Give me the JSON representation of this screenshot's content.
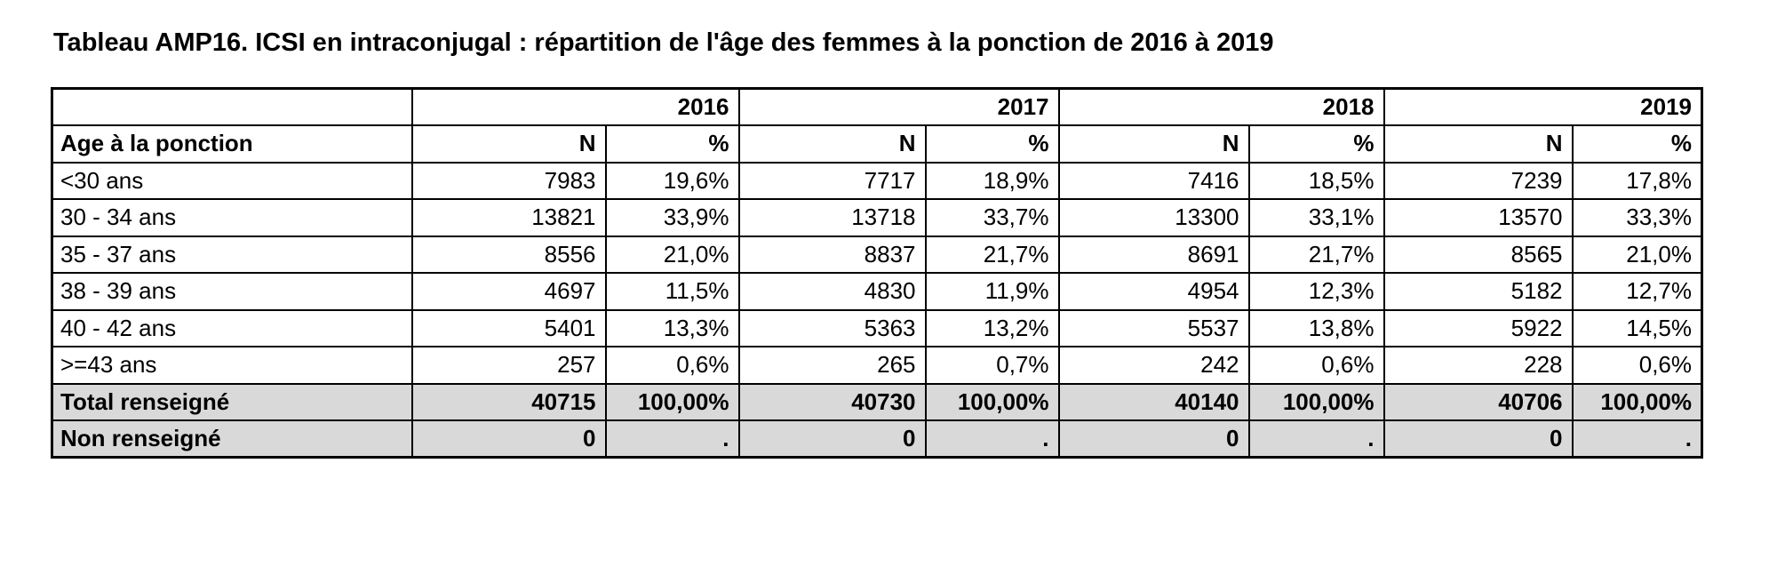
{
  "title": "Tableau AMP16. ICSI en intraconjugal : répartition de l'âge des femmes à la ponction de 2016 à 2019",
  "table": {
    "years": [
      "2016",
      "2017",
      "2018",
      "2019"
    ],
    "row_header_label": "Age à la ponction",
    "sub_headers": {
      "n": "N",
      "pct": "%"
    },
    "rows": [
      {
        "label": "<30 ans",
        "values": [
          "7983",
          "19,6%",
          "7717",
          "18,9%",
          "7416",
          "18,5%",
          "7239",
          "17,8%"
        ]
      },
      {
        "label": "30 - 34 ans",
        "values": [
          "13821",
          "33,9%",
          "13718",
          "33,7%",
          "13300",
          "33,1%",
          "13570",
          "33,3%"
        ]
      },
      {
        "label": "35 - 37 ans",
        "values": [
          "8556",
          "21,0%",
          "8837",
          "21,7%",
          "8691",
          "21,7%",
          "8565",
          "21,0%"
        ]
      },
      {
        "label": "38 - 39 ans",
        "values": [
          "4697",
          "11,5%",
          "4830",
          "11,9%",
          "4954",
          "12,3%",
          "5182",
          "12,7%"
        ]
      },
      {
        "label": "40 - 42 ans",
        "values": [
          "5401",
          "13,3%",
          "5363",
          "13,2%",
          "5537",
          "13,8%",
          "5922",
          "14,5%"
        ]
      },
      {
        "label": ">=43 ans",
        "values": [
          "257",
          "0,6%",
          "265",
          "0,7%",
          "242",
          "0,6%",
          "228",
          "0,6%"
        ]
      }
    ],
    "summary_rows": [
      {
        "label": "Total renseigné",
        "values": [
          "40715",
          "100,00%",
          "40730",
          "100,00%",
          "40140",
          "100,00%",
          "40706",
          "100,00%"
        ]
      },
      {
        "label": "Non renseigné",
        "values": [
          "0",
          ".",
          "0",
          ".",
          "0",
          ".",
          "0",
          "."
        ]
      }
    ]
  },
  "colors": {
    "summary_row_bg": "#d9d9d9",
    "border": "#000000",
    "text": "#000000",
    "background": "#ffffff"
  }
}
